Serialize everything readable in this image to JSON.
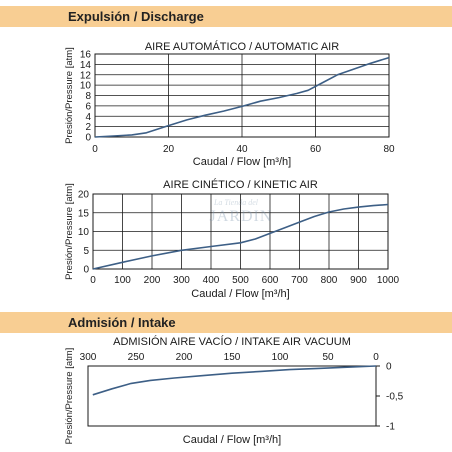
{
  "sections": {
    "discharge_title": "Expulsión / Discharge",
    "intake_title": "Admisión / Intake"
  },
  "watermark": {
    "small": "La Tienda del",
    "big": "JARDIN"
  },
  "colors": {
    "band": "#f8ce93",
    "line": "#3d5f86",
    "grid": "#1a1a1a"
  },
  "chart_data": [
    {
      "type": "line",
      "title": "AIRE AUTOMÁTICO / AUTOMATIC AIR",
      "xlabel": "Caudal / Flow [m³/h]",
      "ylabel": "Presión/Pressure [atm]",
      "xlim": [
        0,
        80
      ],
      "ylim": [
        0,
        16
      ],
      "x_ticks": [
        0,
        20,
        40,
        60,
        80
      ],
      "y_ticks": [
        0,
        2,
        4,
        6,
        8,
        10,
        12,
        14,
        16
      ],
      "x_tick_labels": [
        "0",
        "20",
        "40",
        "60",
        "80"
      ],
      "y_tick_labels": [
        "0",
        "2",
        "4",
        "6",
        "8",
        "10",
        "12",
        "14",
        "16"
      ],
      "grid": true,
      "series": [
        {
          "x": [
            0,
            5,
            10,
            14,
            20,
            25,
            30,
            35,
            40,
            45,
            50,
            55,
            58,
            62,
            66,
            70,
            75,
            80
          ],
          "y": [
            0,
            0.2,
            0.4,
            0.8,
            2.2,
            3.3,
            4.2,
            5.0,
            5.9,
            6.9,
            7.6,
            8.4,
            9.0,
            10.5,
            12.0,
            13.0,
            14.2,
            15.3
          ]
        }
      ]
    },
    {
      "type": "line",
      "title": "AIRE CINÉTICO / KINETIC AIR",
      "xlabel": "Caudal / Flow [m³/h]",
      "ylabel": "Presión/Pressure [atm]",
      "xlim": [
        0,
        1000
      ],
      "ylim": [
        0,
        20
      ],
      "x_ticks": [
        0,
        100,
        200,
        300,
        400,
        500,
        600,
        700,
        800,
        900,
        1000
      ],
      "y_ticks": [
        0,
        5,
        10,
        15,
        20
      ],
      "x_tick_labels": [
        "0",
        "100",
        "200",
        "300",
        "400",
        "500",
        "600",
        "700",
        "800",
        "900",
        "1000"
      ],
      "y_tick_labels": [
        "0",
        "5",
        "10",
        "15",
        "20"
      ],
      "grid": true,
      "series": [
        {
          "x": [
            0,
            100,
            200,
            300,
            400,
            500,
            550,
            600,
            650,
            700,
            750,
            800,
            850,
            900,
            950,
            1000
          ],
          "y": [
            0,
            1.8,
            3.5,
            5.0,
            6.0,
            7.0,
            8.0,
            9.5,
            11.0,
            12.5,
            14.0,
            15.2,
            16.0,
            16.5,
            16.9,
            17.2
          ]
        }
      ]
    },
    {
      "type": "line",
      "title": "ADMISIÓN AIRE VACÍO / INTAKE AIR VACUUM",
      "xlabel": "Caudal / Flow [m³/h]",
      "ylabel": "Presión/Pressure [atm]",
      "xlim": [
        300,
        0
      ],
      "ylim": [
        -1,
        0
      ],
      "x_ticks": [
        300,
        250,
        200,
        150,
        100,
        50,
        0
      ],
      "y_ticks": [
        0,
        -0.5,
        -1
      ],
      "x_tick_labels": [
        "300",
        "250",
        "200",
        "150",
        "100",
        "50",
        "0"
      ],
      "y_tick_labels": [
        "0",
        "-0,5",
        "-1"
      ],
      "grid": false,
      "series": [
        {
          "x": [
            295,
            275,
            255,
            235,
            210,
            180,
            150,
            120,
            90,
            60,
            30,
            0
          ],
          "y": [
            -0.48,
            -0.38,
            -0.29,
            -0.24,
            -0.2,
            -0.16,
            -0.12,
            -0.09,
            -0.06,
            -0.04,
            -0.02,
            0
          ]
        }
      ]
    }
  ]
}
